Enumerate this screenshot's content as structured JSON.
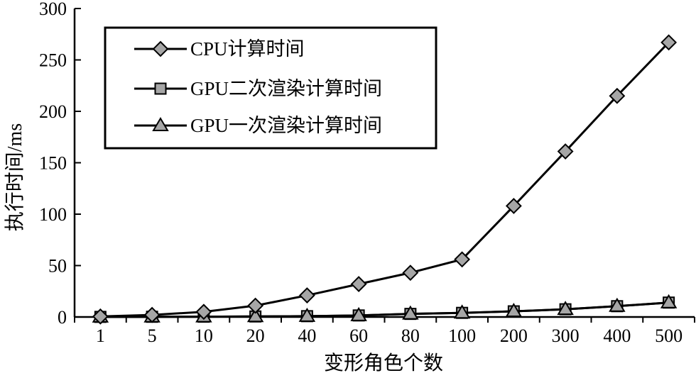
{
  "chart_data": {
    "type": "line",
    "categories": [
      "1",
      "5",
      "10",
      "20",
      "40",
      "60",
      "80",
      "100",
      "200",
      "300",
      "400",
      "500"
    ],
    "xlabel": "变形角色个数",
    "ylabel": "执行时间/ms",
    "ylim": [
      0,
      300
    ],
    "yticks": [
      "0",
      "50",
      "100",
      "150",
      "200",
      "250",
      "300"
    ],
    "grid": false,
    "legend_position": "top-left",
    "series": [
      {
        "name": "CPU计算时间",
        "marker": "diamond",
        "values": [
          0.5,
          2,
          5,
          11,
          21,
          32,
          43,
          56,
          108,
          161,
          215,
          267
        ]
      },
      {
        "name": "GPU二次渲染计算时间",
        "marker": "square",
        "values": [
          0.1,
          0.2,
          0.3,
          0.5,
          0.8,
          1.5,
          3,
          4,
          5.5,
          7.5,
          10.5,
          14
        ]
      },
      {
        "name": "GPU一次渲染计算时间",
        "marker": "triangle",
        "values": [
          0.1,
          0.2,
          0.3,
          0.5,
          0.8,
          1.5,
          3,
          4,
          5.5,
          7.5,
          10.5,
          14
        ]
      }
    ],
    "colors": {
      "line": "#000000",
      "marker_fill": "#a6a6a6"
    }
  }
}
